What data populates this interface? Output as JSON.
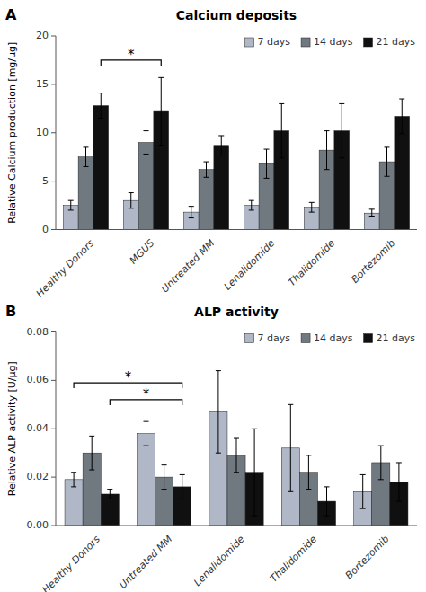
{
  "chart_data": [
    {
      "type": "bar",
      "panel_label": "A",
      "title": "Calcium deposits",
      "ylabel": "Relative Calcium production [mg/µg]",
      "categories": [
        "Healthy Donors",
        "MGUS",
        "Untreated MM",
        "Lenalidomide",
        "Thalidomide",
        "Bortezomib"
      ],
      "series": [
        {
          "name": "7 days",
          "color": "#b0b8c8",
          "values": [
            2.5,
            3.0,
            1.8,
            2.5,
            2.3,
            1.7
          ],
          "errors": [
            0.5,
            0.8,
            0.6,
            0.5,
            0.5,
            0.4
          ]
        },
        {
          "name": "14 days",
          "color": "#707880",
          "values": [
            7.5,
            9.0,
            6.2,
            6.8,
            8.2,
            7.0
          ],
          "errors": [
            1.0,
            1.2,
            0.8,
            1.5,
            2.0,
            1.5
          ]
        },
        {
          "name": "21 days",
          "color": "#101010",
          "values": [
            12.8,
            12.2,
            8.7,
            10.2,
            10.2,
            11.7
          ],
          "errors": [
            1.3,
            3.5,
            1.0,
            2.8,
            2.8,
            1.8
          ]
        }
      ],
      "ylim": [
        0,
        20
      ],
      "yticks": [
        0,
        5,
        10,
        15,
        20
      ],
      "annotations": [
        {
          "text": "*",
          "y": 17.5,
          "from": [
            "Healthy Donors",
            "21 days"
          ],
          "to": [
            "MGUS",
            "21 days"
          ]
        }
      ],
      "legend": "upper right",
      "grid": false
    },
    {
      "type": "bar",
      "panel_label": "B",
      "title": "ALP activity",
      "ylabel": "Relative ALP activity [U/µg]",
      "categories": [
        "Healthy Donors",
        "Untreated MM",
        "Lenalidomide",
        "Thalidomide",
        "Bortezomib"
      ],
      "series": [
        {
          "name": "7 days",
          "color": "#b0b8c8",
          "values": [
            0.019,
            0.038,
            0.047,
            0.032,
            0.014
          ],
          "errors": [
            0.003,
            0.005,
            0.017,
            0.018,
            0.007
          ]
        },
        {
          "name": "14 days",
          "color": "#707880",
          "values": [
            0.03,
            0.02,
            0.029,
            0.022,
            0.026
          ],
          "errors": [
            0.007,
            0.005,
            0.007,
            0.007,
            0.007
          ]
        },
        {
          "name": "21 days",
          "color": "#101010",
          "values": [
            0.013,
            0.016,
            0.022,
            0.01,
            0.018
          ],
          "errors": [
            0.002,
            0.005,
            0.018,
            0.006,
            0.008
          ]
        }
      ],
      "ylim": [
        0,
        0.08
      ],
      "yticks": [
        {
          "value": 0,
          "label": "0.00"
        },
        0.02,
        0.04,
        0.06,
        0.08
      ],
      "annotations": [
        {
          "text": "*",
          "y": 0.052,
          "from": [
            "Healthy Donors",
            "21 days"
          ],
          "to": [
            "Untreated MM",
            "21 days"
          ]
        },
        {
          "text": "*",
          "y": 0.059,
          "from": [
            "Healthy Donors",
            "7 days"
          ],
          "to": [
            "Untreated MM",
            "21 days"
          ]
        }
      ],
      "legend": "upper right",
      "grid": false
    }
  ]
}
